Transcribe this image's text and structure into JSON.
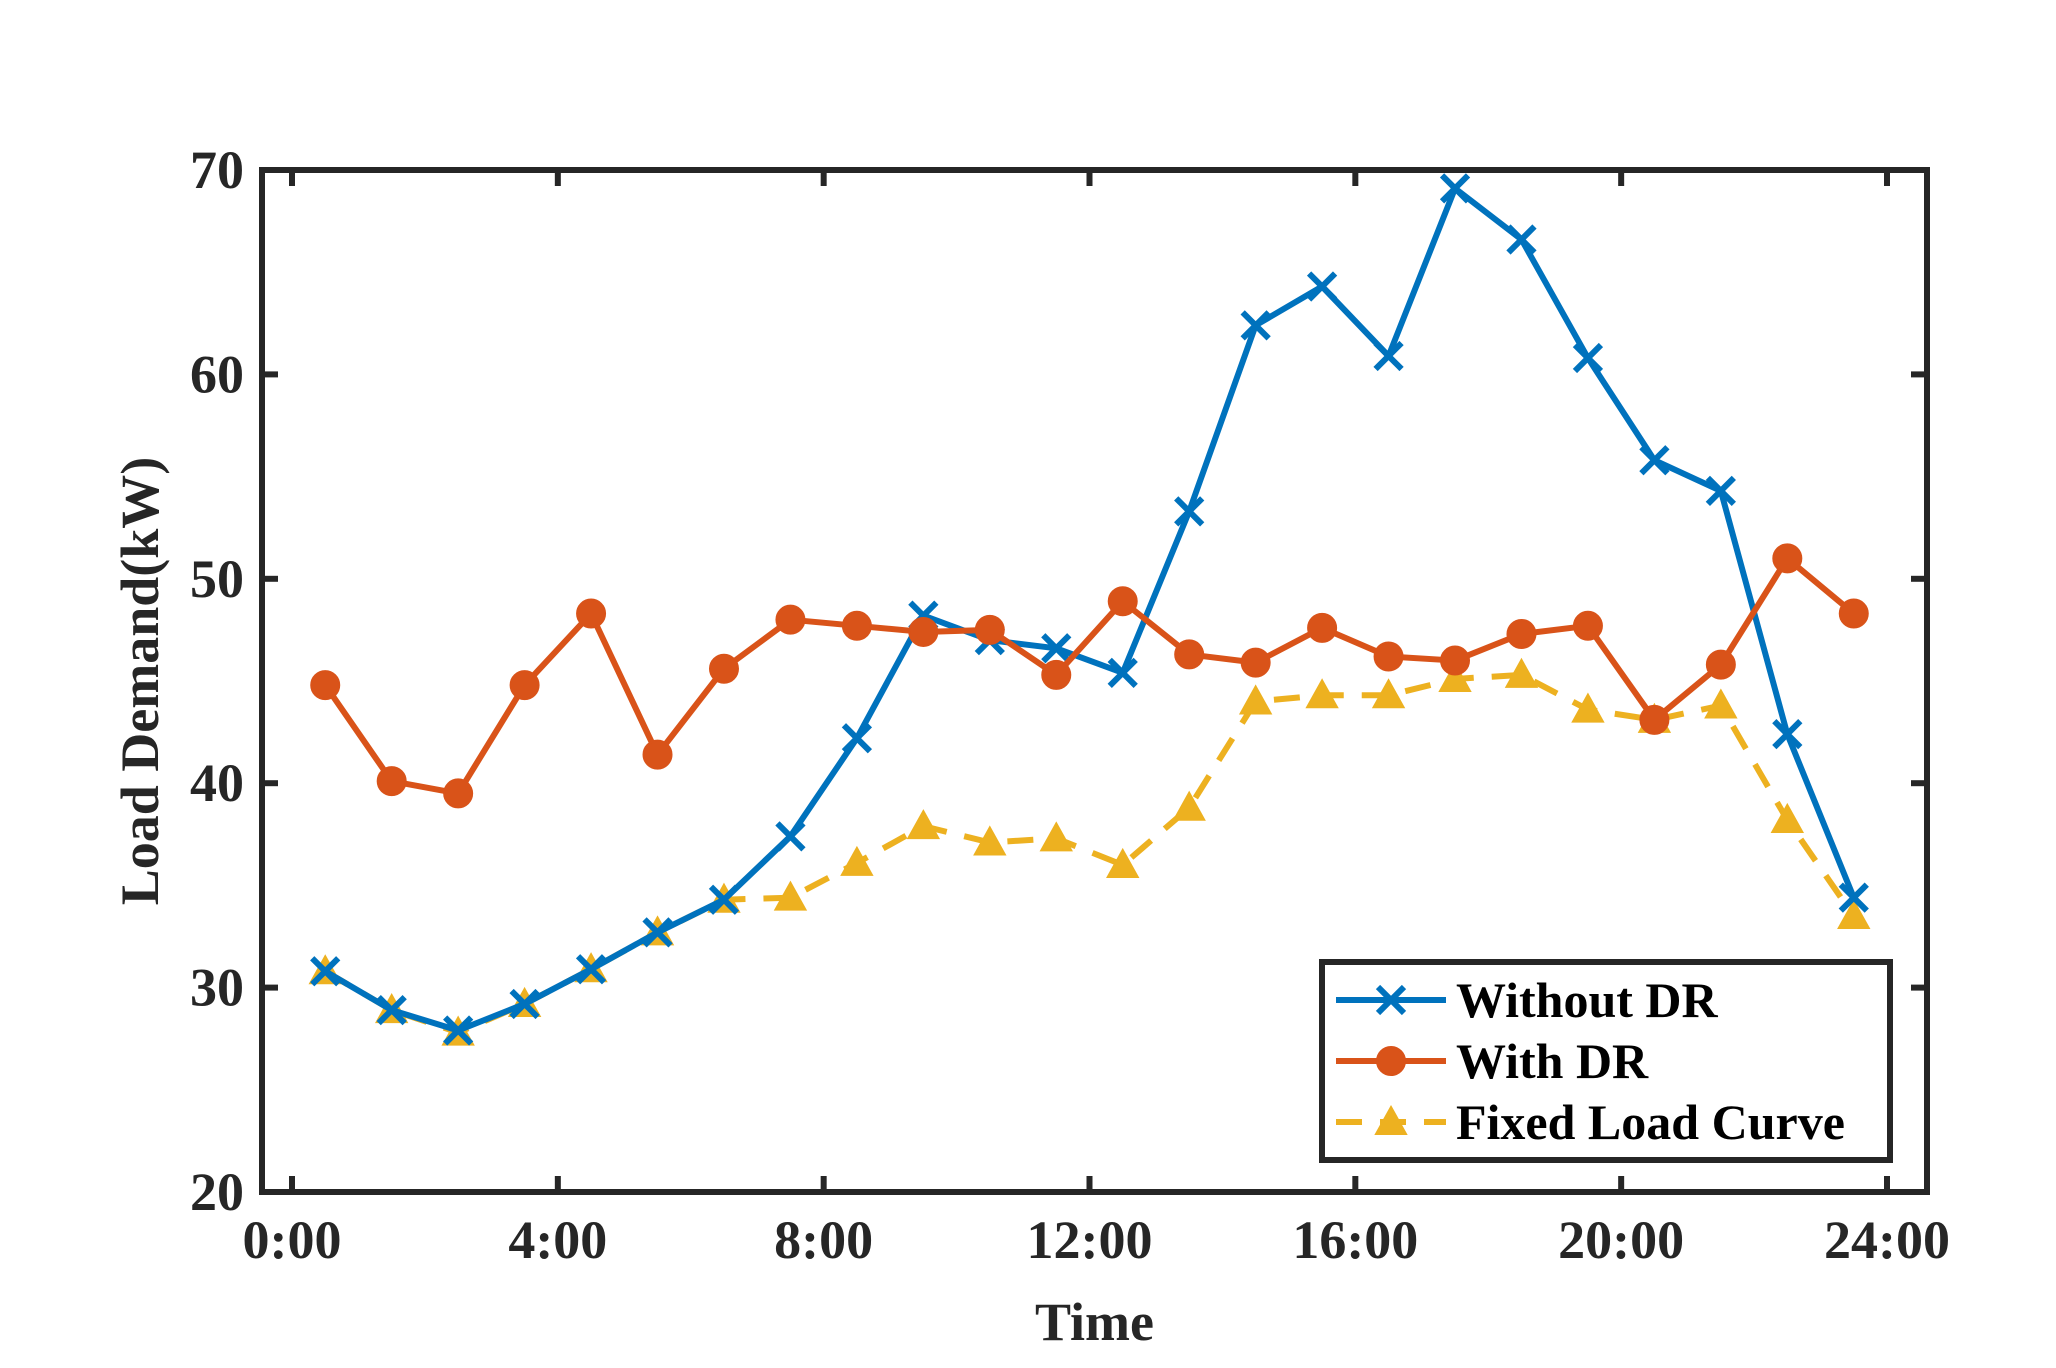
{
  "chart_data": {
    "type": "line",
    "title": "",
    "xlabel": "Time",
    "ylabel": "Load Demand(kW)",
    "xlim": [
      0,
      24
    ],
    "ylim": [
      20,
      70
    ],
    "x": [
      0.5,
      1.5,
      2.5,
      3.5,
      4.5,
      5.5,
      6.5,
      7.5,
      8.5,
      9.5,
      10.5,
      11.5,
      12.5,
      13.5,
      14.5,
      15.5,
      16.5,
      17.5,
      18.5,
      19.5,
      20.5,
      21.5,
      22.5,
      23.5
    ],
    "xticks": [
      {
        "value": 0,
        "label": "0:00"
      },
      {
        "value": 4,
        "label": "4:00"
      },
      {
        "value": 8,
        "label": "8:00"
      },
      {
        "value": 12,
        "label": "12:00"
      },
      {
        "value": 16,
        "label": "16:00"
      },
      {
        "value": 20,
        "label": "20:00"
      },
      {
        "value": 24,
        "label": "24:00"
      }
    ],
    "yticks": [
      {
        "value": 20,
        "label": "20"
      },
      {
        "value": 30,
        "label": "30"
      },
      {
        "value": 40,
        "label": "40"
      },
      {
        "value": 50,
        "label": "50"
      },
      {
        "value": 60,
        "label": "60"
      },
      {
        "value": 70,
        "label": "70"
      }
    ],
    "grid": false,
    "legend_position": "bottom-right",
    "series": [
      {
        "name": "Without DR",
        "color": "#0072BD",
        "marker": "x",
        "line_style": "solid",
        "values": [
          30.8,
          28.9,
          27.9,
          29.2,
          30.9,
          32.7,
          34.3,
          37.4,
          42.2,
          48.2,
          47.0,
          46.6,
          45.4,
          53.3,
          62.4,
          64.3,
          60.9,
          69.1,
          66.6,
          60.8,
          55.8,
          54.3,
          42.4,
          34.4
        ]
      },
      {
        "name": "With DR",
        "color": "#D95319",
        "marker": "circle",
        "line_style": "solid",
        "values": [
          44.8,
          40.1,
          39.5,
          44.8,
          48.3,
          41.4,
          45.6,
          48.0,
          47.7,
          47.4,
          47.5,
          45.3,
          48.9,
          46.3,
          45.9,
          47.6,
          46.2,
          46.0,
          47.3,
          47.7,
          43.1,
          45.8,
          51.0,
          48.3
        ]
      },
      {
        "name": "Fixed Load Curve",
        "color": "#EDB120",
        "marker": "triangle",
        "line_style": "dashed",
        "values": [
          30.8,
          28.9,
          27.8,
          29.2,
          30.9,
          32.7,
          34.3,
          34.4,
          36.1,
          37.9,
          37.1,
          37.3,
          36.0,
          38.8,
          44.0,
          44.3,
          44.3,
          45.1,
          45.3,
          43.6,
          43.1,
          43.8,
          38.2,
          33.5
        ]
      }
    ]
  }
}
